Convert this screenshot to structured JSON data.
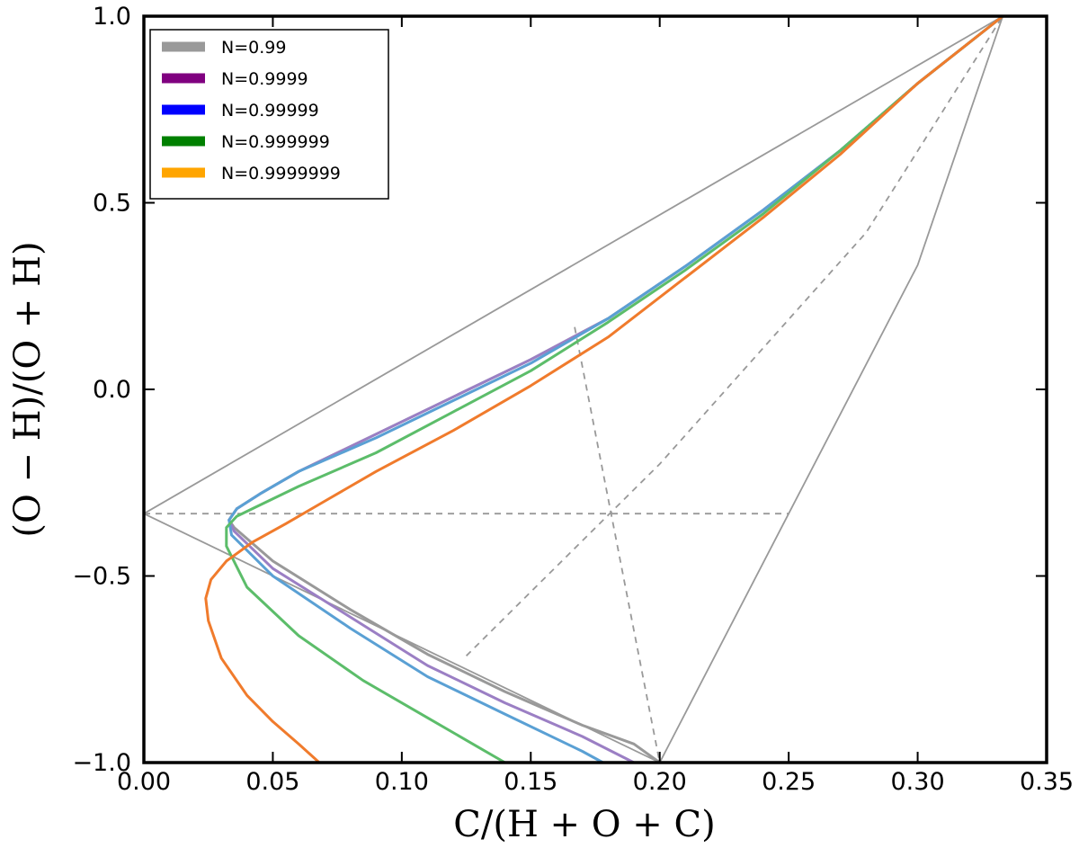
{
  "chart_data": {
    "type": "line",
    "xlabel": "C/(H + O + C)",
    "ylabel": "(O − H)/(O + H)",
    "xlim": [
      0.0,
      0.35
    ],
    "ylim": [
      -1.0,
      1.0
    ],
    "grid": false,
    "legend_position": "top-left",
    "x_ticks": [
      "0.00",
      "0.05",
      "0.10",
      "0.15",
      "0.20",
      "0.25",
      "0.30",
      "0.35"
    ],
    "y_ticks": [
      "1.0",
      "0.5",
      "0.0",
      "−0.5",
      "−1.0"
    ],
    "x_tick_values": [
      0.0,
      0.05,
      0.1,
      0.15,
      0.2,
      0.25,
      0.3,
      0.35
    ],
    "y_tick_values": [
      1.0,
      0.5,
      0.0,
      -0.5,
      -1.0
    ],
    "legend": [
      {
        "label": "N=0.99",
        "color": "#999999"
      },
      {
        "label": "N=0.9999",
        "color": "#800080"
      },
      {
        "label": "N=0.99999",
        "color": "#0000ff"
      },
      {
        "label": "N=0.999999",
        "color": "#008000"
      },
      {
        "label": "N=0.9999999",
        "color": "#ffa500"
      }
    ],
    "series": [
      {
        "name": "N=0.99",
        "color": "#999999",
        "x": [
          0.333,
          0.3,
          0.27,
          0.24,
          0.21,
          0.18,
          0.15,
          0.12,
          0.09,
          0.06,
          0.045,
          0.036,
          0.033,
          0.035,
          0.05,
          0.08,
          0.11,
          0.14,
          0.17,
          0.19,
          0.2
        ],
        "y": [
          1.0,
          0.82,
          0.64,
          0.48,
          0.33,
          0.19,
          0.08,
          -0.02,
          -0.12,
          -0.22,
          -0.28,
          -0.32,
          -0.35,
          -0.37,
          -0.46,
          -0.59,
          -0.71,
          -0.81,
          -0.9,
          -0.95,
          -1.0
        ]
      },
      {
        "name": "N=0.9999",
        "color": "#9b7fc4",
        "x": [
          0.333,
          0.3,
          0.27,
          0.24,
          0.21,
          0.18,
          0.15,
          0.12,
          0.09,
          0.06,
          0.045,
          0.036,
          0.033,
          0.035,
          0.05,
          0.08,
          0.11,
          0.14,
          0.17,
          0.19
        ],
        "y": [
          1.0,
          0.82,
          0.64,
          0.48,
          0.33,
          0.19,
          0.08,
          -0.02,
          -0.12,
          -0.22,
          -0.28,
          -0.32,
          -0.35,
          -0.38,
          -0.48,
          -0.61,
          -0.74,
          -0.84,
          -0.93,
          -1.0
        ]
      },
      {
        "name": "N=0.99999",
        "color": "#5aa0d4",
        "x": [
          0.333,
          0.3,
          0.27,
          0.24,
          0.21,
          0.18,
          0.15,
          0.12,
          0.09,
          0.06,
          0.045,
          0.036,
          0.033,
          0.034,
          0.05,
          0.08,
          0.11,
          0.14,
          0.17,
          0.178
        ],
        "y": [
          1.0,
          0.82,
          0.64,
          0.48,
          0.33,
          0.19,
          0.07,
          -0.03,
          -0.13,
          -0.22,
          -0.28,
          -0.32,
          -0.35,
          -0.39,
          -0.5,
          -0.64,
          -0.77,
          -0.87,
          -0.97,
          -1.0
        ]
      },
      {
        "name": "N=0.999999",
        "color": "#5cbd6a",
        "x": [
          0.333,
          0.3,
          0.27,
          0.24,
          0.21,
          0.18,
          0.15,
          0.12,
          0.09,
          0.06,
          0.045,
          0.036,
          0.032,
          0.032,
          0.04,
          0.06,
          0.085,
          0.11,
          0.13,
          0.14
        ],
        "y": [
          1.0,
          0.82,
          0.64,
          0.47,
          0.32,
          0.18,
          0.05,
          -0.06,
          -0.17,
          -0.26,
          -0.31,
          -0.34,
          -0.37,
          -0.42,
          -0.53,
          -0.66,
          -0.78,
          -0.88,
          -0.96,
          -1.0
        ]
      },
      {
        "name": "N=0.9999999",
        "color": "#f07b2c",
        "x": [
          0.333,
          0.3,
          0.27,
          0.24,
          0.21,
          0.18,
          0.15,
          0.12,
          0.09,
          0.07,
          0.055,
          0.042,
          0.032,
          0.026,
          0.024,
          0.025,
          0.03,
          0.04,
          0.05,
          0.06,
          0.068
        ],
        "y": [
          1.0,
          0.82,
          0.63,
          0.46,
          0.3,
          0.14,
          0.01,
          -0.11,
          -0.22,
          -0.3,
          -0.36,
          -0.41,
          -0.46,
          -0.51,
          -0.56,
          -0.62,
          -0.72,
          -0.82,
          -0.89,
          -0.95,
          -1.0
        ]
      }
    ],
    "reference_lines": [
      {
        "style": "solid",
        "color": "#999999",
        "x": [
          0.0,
          0.333
        ],
        "y": [
          -0.333,
          1.0
        ]
      },
      {
        "style": "solid",
        "color": "#999999",
        "x": [
          0.0,
          0.2
        ],
        "y": [
          -0.333,
          -1.0
        ]
      },
      {
        "style": "solid",
        "color": "#999999",
        "x": [
          0.2,
          0.25,
          0.3,
          0.333
        ],
        "y": [
          -1.0,
          -0.333,
          0.333,
          1.0
        ]
      },
      {
        "style": "dashed",
        "color": "#999999",
        "x": [
          0.0,
          0.25
        ],
        "y": [
          -0.333,
          -0.333
        ]
      },
      {
        "style": "dashed",
        "color": "#999999",
        "x": [
          0.125,
          0.2,
          0.28,
          0.333
        ],
        "y": [
          -0.714,
          -0.2,
          0.42,
          1.0
        ]
      },
      {
        "style": "dashed",
        "color": "#999999",
        "x": [
          0.167,
          0.2
        ],
        "y": [
          0.167,
          -1.0
        ]
      }
    ]
  }
}
